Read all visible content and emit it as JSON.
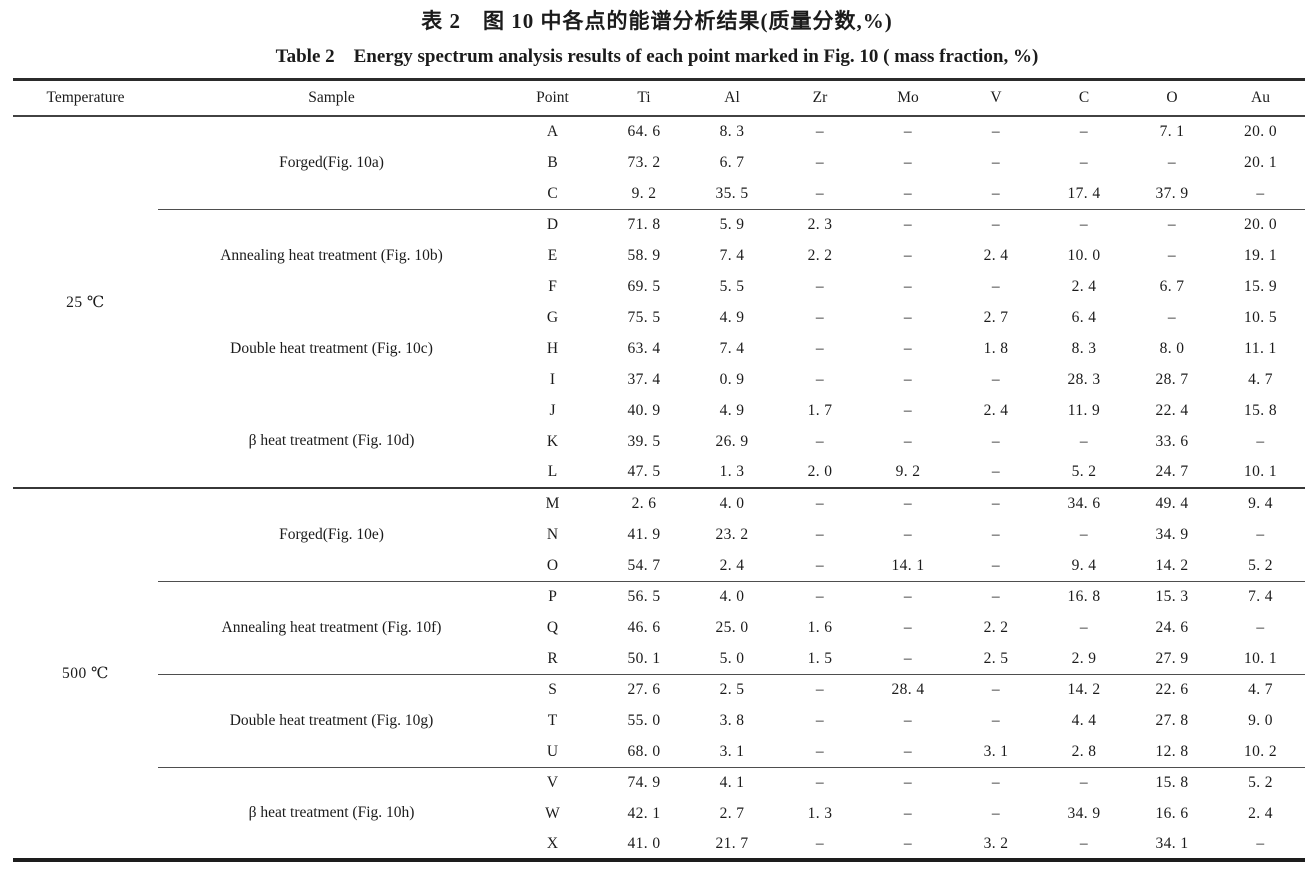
{
  "page": {
    "title_cn": "表 2　图 10 中各点的能谱分析结果(质量分数,%)",
    "title_en": "Table 2　Energy spectrum analysis results of each point marked in Fig. 10 ( mass fraction, %)"
  },
  "table": {
    "columns": [
      "Temperature",
      "Sample",
      "Point",
      "Ti",
      "Al",
      "Zr",
      "Mo",
      "V",
      "C",
      "O",
      "Au"
    ],
    "dash": "–",
    "sections": [
      {
        "temperature": "25 ℃",
        "groups": [
          {
            "sample": "Forged(Fig. 10a)",
            "divider_after": true,
            "rows": [
              {
                "point": "A",
                "values": [
                  "64.6",
                  "8.3",
                  "–",
                  "–",
                  "–",
                  "–",
                  "7.1",
                  "20.0"
                ]
              },
              {
                "point": "B",
                "values": [
                  "73.2",
                  "6.7",
                  "–",
                  "–",
                  "–",
                  "–",
                  "–",
                  "20.1"
                ]
              },
              {
                "point": "C",
                "values": [
                  "9.2",
                  "35.5",
                  "–",
                  "–",
                  "–",
                  "17.4",
                  "37.9",
                  "–"
                ]
              }
            ]
          },
          {
            "sample": "Annealing heat treatment (Fig. 10b)",
            "divider_after": false,
            "rows": [
              {
                "point": "D",
                "values": [
                  "71.8",
                  "5.9",
                  "2.3",
                  "–",
                  "–",
                  "–",
                  "–",
                  "20.0"
                ]
              },
              {
                "point": "E",
                "values": [
                  "58.9",
                  "7.4",
                  "2.2",
                  "–",
                  "2.4",
                  "10.0",
                  "–",
                  "19.1"
                ]
              },
              {
                "point": "F",
                "values": [
                  "69.5",
                  "5.5",
                  "–",
                  "–",
                  "–",
                  "2.4",
                  "6.7",
                  "15.9"
                ]
              }
            ]
          },
          {
            "sample": "Double heat treatment (Fig. 10c)",
            "divider_after": false,
            "rows": [
              {
                "point": "G",
                "values": [
                  "75.5",
                  "4.9",
                  "–",
                  "–",
                  "2.7",
                  "6.4",
                  "–",
                  "10.5"
                ]
              },
              {
                "point": "H",
                "values": [
                  "63.4",
                  "7.4",
                  "–",
                  "–",
                  "1.8",
                  "8.3",
                  "8.0",
                  "11.1"
                ]
              },
              {
                "point": "I",
                "values": [
                  "37.4",
                  "0.9",
                  "–",
                  "–",
                  "–",
                  "28.3",
                  "28.7",
                  "4.7"
                ]
              }
            ]
          },
          {
            "sample": "β heat treatment (Fig. 10d)",
            "divider_after": false,
            "rows": [
              {
                "point": "J",
                "values": [
                  "40.9",
                  "4.9",
                  "1.7",
                  "–",
                  "2.4",
                  "11.9",
                  "22.4",
                  "15.8"
                ]
              },
              {
                "point": "K",
                "values": [
                  "39.5",
                  "26.9",
                  "–",
                  "–",
                  "–",
                  "–",
                  "33.6",
                  "–"
                ]
              },
              {
                "point": "L",
                "values": [
                  "47.5",
                  "1.3",
                  "2.0",
                  "9.2",
                  "–",
                  "5.2",
                  "24.7",
                  "10.1"
                ]
              }
            ]
          }
        ]
      },
      {
        "temperature": "500 ℃",
        "groups": [
          {
            "sample": "Forged(Fig. 10e)",
            "divider_after": true,
            "rows": [
              {
                "point": "M",
                "values": [
                  "2.6",
                  "4.0",
                  "–",
                  "–",
                  "–",
                  "34.6",
                  "49.4",
                  "9.4"
                ]
              },
              {
                "point": "N",
                "values": [
                  "41.9",
                  "23.2",
                  "–",
                  "–",
                  "–",
                  "–",
                  "34.9",
                  "–"
                ]
              },
              {
                "point": "O",
                "values": [
                  "54.7",
                  "2.4",
                  "–",
                  "14.1",
                  "–",
                  "9.4",
                  "14.2",
                  "5.2"
                ]
              }
            ]
          },
          {
            "sample": "Annealing heat treatment (Fig. 10f)",
            "divider_after": true,
            "rows": [
              {
                "point": "P",
                "values": [
                  "56.5",
                  "4.0",
                  "–",
                  "–",
                  "–",
                  "16.8",
                  "15.3",
                  "7.4"
                ]
              },
              {
                "point": "Q",
                "values": [
                  "46.6",
                  "25.0",
                  "1.6",
                  "–",
                  "2.2",
                  "–",
                  "24.6",
                  "–"
                ]
              },
              {
                "point": "R",
                "values": [
                  "50.1",
                  "5.0",
                  "1.5",
                  "–",
                  "2.5",
                  "2.9",
                  "27.9",
                  "10.1"
                ]
              }
            ]
          },
          {
            "sample": "Double heat treatment (Fig. 10g)",
            "divider_after": true,
            "rows": [
              {
                "point": "S",
                "values": [
                  "27.6",
                  "2.5",
                  "–",
                  "28.4",
                  "–",
                  "14.2",
                  "22.6",
                  "4.7"
                ]
              },
              {
                "point": "T",
                "values": [
                  "55.0",
                  "3.8",
                  "–",
                  "–",
                  "–",
                  "4.4",
                  "27.8",
                  "9.0"
                ]
              },
              {
                "point": "U",
                "values": [
                  "68.0",
                  "3.1",
                  "–",
                  "–",
                  "3.1",
                  "2.8",
                  "12.8",
                  "10.2"
                ]
              }
            ]
          },
          {
            "sample": "β heat treatment (Fig. 10h)",
            "divider_after": false,
            "rows": [
              {
                "point": "V",
                "values": [
                  "74.9",
                  "4.1",
                  "–",
                  "–",
                  "–",
                  "–",
                  "15.8",
                  "5.2"
                ]
              },
              {
                "point": "W",
                "values": [
                  "42.1",
                  "2.7",
                  "1.3",
                  "–",
                  "–",
                  "34.9",
                  "16.6",
                  "2.4"
                ]
              },
              {
                "point": "X",
                "values": [
                  "41.0",
                  "21.7",
                  "–",
                  "–",
                  "3.2",
                  "–",
                  "34.1",
                  "–"
                ]
              }
            ]
          }
        ]
      }
    ]
  }
}
